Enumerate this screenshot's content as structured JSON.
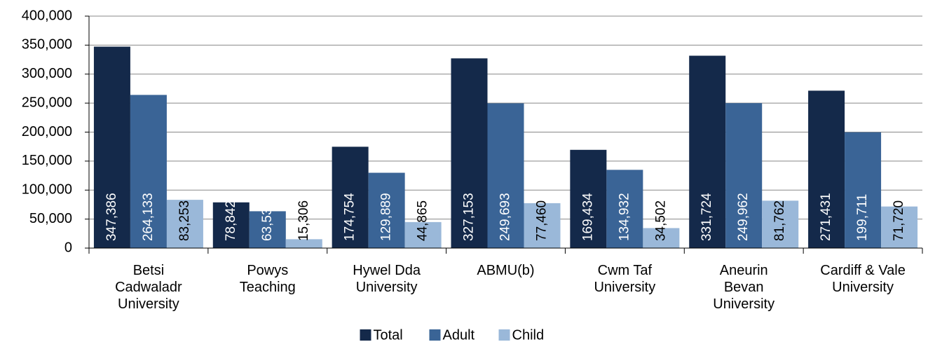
{
  "chart_data": {
    "type": "bar",
    "categories": [
      "Betsi\nCadwaladr\nUniversity",
      "Powys\nTeaching",
      "Hywel Dda\nUniversity",
      "ABMU(b)",
      "Cwm Taf\nUniversity",
      "Aneurin\nBevan\nUniversity",
      "Cardiff & Vale\nUniversity"
    ],
    "series": [
      {
        "name": "Total",
        "color": "#14294a",
        "values": [
          347386,
          78842,
          174754,
          327153,
          169434,
          331724,
          271431
        ],
        "value_labels": [
          "347,386",
          "78,842",
          "174,754",
          "327,153",
          "169,434",
          "331,724",
          "271,431"
        ]
      },
      {
        "name": "Adult",
        "color": "#3a6496",
        "values": [
          264133,
          63536,
          129889,
          249693,
          134932,
          249962,
          199711
        ],
        "value_labels": [
          "264,133",
          "63,536",
          "129,889",
          "249,693",
          "134,932",
          "249,962",
          "199,711"
        ]
      },
      {
        "name": "Child",
        "color": "#9ab8d9",
        "values": [
          83253,
          15306,
          44865,
          77460,
          34502,
          81762,
          71720
        ],
        "value_labels": [
          "83,253",
          "15,306",
          "44,865",
          "77,460",
          "34,502",
          "81,762",
          "71,720"
        ]
      }
    ],
    "ylim": [
      0,
      400000
    ],
    "yticks": [
      0,
      {
        "value": 50000,
        "label": "50,000"
      },
      {
        "value": 100000,
        "label": "100,000"
      },
      {
        "value": 150000,
        "label": "150,000"
      },
      {
        "value": 200000,
        "label": "200,000"
      },
      {
        "value": 250000,
        "label": "250,000"
      },
      {
        "value": 300000,
        "label": "300,000"
      },
      {
        "value": 350000,
        "label": "350,000"
      },
      {
        "value": 400000,
        "label": "400,000"
      }
    ],
    "grid": true,
    "legend": "bottom"
  }
}
